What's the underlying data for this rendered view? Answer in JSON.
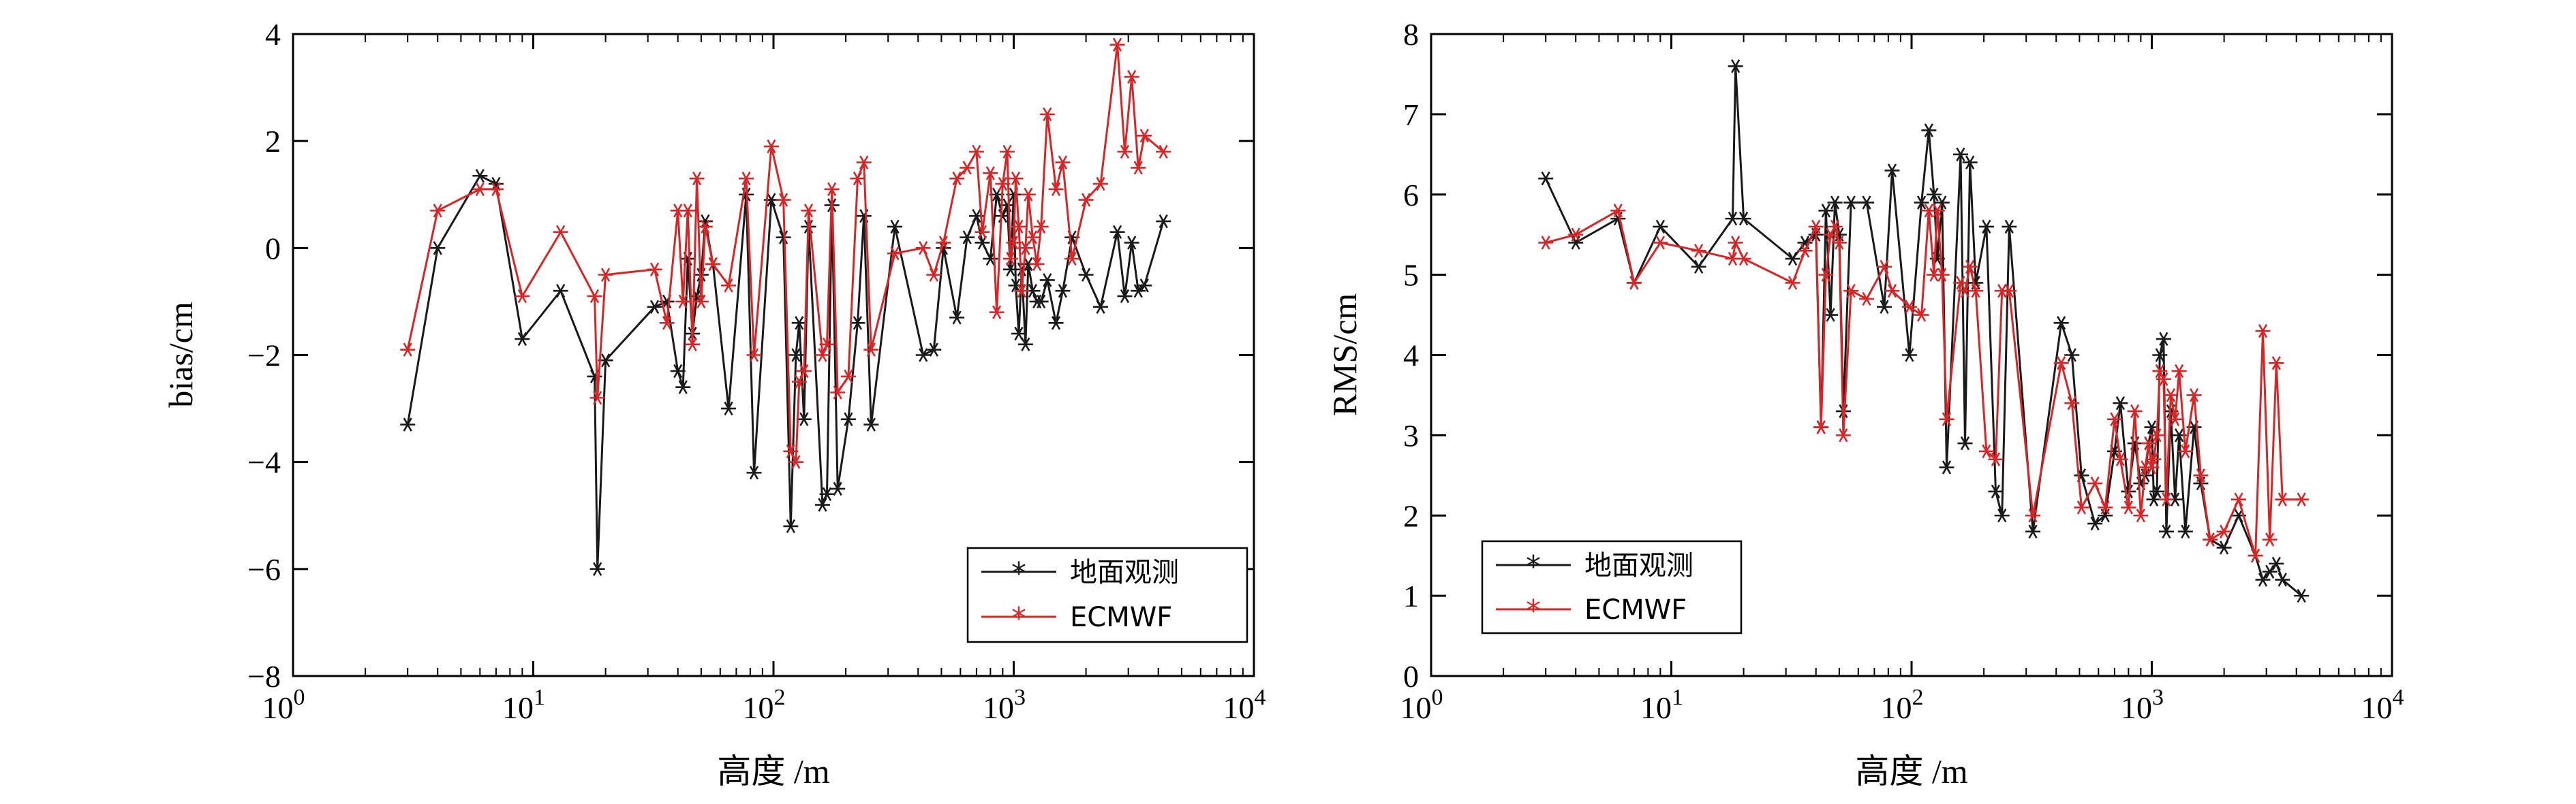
{
  "chart_data": [
    {
      "type": "line",
      "xscale": "log",
      "xlim": [
        1,
        10000
      ],
      "ylim": [
        -8,
        4
      ],
      "yticks": [
        -8,
        -6,
        -4,
        -2,
        0,
        2,
        4
      ],
      "ytick_labels": [
        "−8",
        "−6",
        "−4",
        "−2",
        "0",
        "2",
        "4"
      ],
      "xtick_labels": [
        {
          "base": "10",
          "exp": "0"
        },
        {
          "base": "10",
          "exp": "1"
        },
        {
          "base": "10",
          "exp": "2"
        },
        {
          "base": "10",
          "exp": "3"
        },
        {
          "base": "10",
          "exp": "4"
        }
      ],
      "xlabel": "高度 /m",
      "ylabel": "bias/cm",
      "legend_position": "bottom-right",
      "series": [
        {
          "name": "地面观测",
          "color": "#1a1a1a",
          "x": [
            3,
            4,
            6,
            7,
            9,
            13,
            18,
            18.5,
            20,
            32,
            36,
            40,
            42,
            44,
            46,
            48,
            50,
            52,
            56,
            65,
            77,
            83,
            98,
            110,
            118,
            124,
            128,
            134,
            140,
            160,
            167,
            175,
            185,
            205,
            224,
            238,
            255,
            320,
            420,
            465,
            510,
            580,
            640,
            700,
            740,
            800,
            850,
            900,
            940,
            970,
            1000,
            1020,
            1050,
            1080,
            1120,
            1150,
            1200,
            1250,
            1300,
            1380,
            1500,
            1600,
            1750,
            2000,
            2300,
            2700,
            2900,
            3100,
            3300,
            3500,
            4200
          ],
          "y": [
            -3.3,
            0.0,
            1.35,
            1.2,
            -1.7,
            -0.8,
            -2.4,
            -6.0,
            -2.1,
            -1.1,
            -1.0,
            -2.3,
            -2.6,
            -0.2,
            -1.6,
            -0.9,
            -0.5,
            0.5,
            -0.3,
            -3.0,
            1.0,
            -4.2,
            0.9,
            0.2,
            -5.2,
            -2.0,
            -1.4,
            -3.2,
            0.4,
            -4.8,
            -4.6,
            0.8,
            -4.5,
            -3.2,
            -1.4,
            0.6,
            -3.3,
            0.4,
            -2.0,
            -1.9,
            0.0,
            -1.3,
            0.2,
            0.6,
            0.1,
            -0.2,
            1.0,
            0.6,
            0.8,
            -0.4,
            1.0,
            -0.7,
            -1.6,
            -0.4,
            -1.8,
            -0.3,
            -0.8,
            -1.0,
            -1.0,
            -0.6,
            -1.4,
            -0.8,
            0.2,
            -0.5,
            -1.1,
            0.3,
            -0.9,
            0.1,
            -0.8,
            -0.7,
            0.5
          ]
        },
        {
          "name": "ECMWF",
          "color": "#d62728",
          "x": [
            3,
            4,
            6,
            7,
            9,
            13,
            18,
            18.5,
            20,
            32,
            36,
            40,
            42,
            44,
            46,
            48,
            50,
            52,
            56,
            65,
            77,
            83,
            98,
            110,
            118,
            124,
            128,
            134,
            140,
            160,
            167,
            175,
            185,
            205,
            224,
            238,
            255,
            320,
            420,
            465,
            510,
            580,
            640,
            700,
            740,
            800,
            850,
            900,
            940,
            970,
            1000,
            1020,
            1050,
            1080,
            1120,
            1150,
            1200,
            1250,
            1300,
            1380,
            1500,
            1600,
            1750,
            2000,
            2300,
            2700,
            2900,
            3100,
            3300,
            3500,
            4200
          ],
          "y": [
            -1.9,
            0.7,
            1.1,
            1.1,
            -0.9,
            0.3,
            -0.9,
            -2.8,
            -0.5,
            -0.4,
            -1.4,
            0.7,
            -1.0,
            0.7,
            -1.8,
            1.3,
            -1.0,
            0.4,
            -0.3,
            -0.7,
            1.3,
            -2.0,
            1.9,
            0.9,
            -3.8,
            -4.0,
            -2.5,
            -2.3,
            0.7,
            -2.0,
            -1.8,
            1.1,
            -2.7,
            -2.4,
            1.3,
            1.6,
            -1.9,
            -0.1,
            0.0,
            -0.5,
            0.1,
            1.3,
            1.5,
            1.8,
            0.3,
            1.4,
            -1.2,
            1.2,
            1.8,
            -0.2,
            0.1,
            1.3,
            0.4,
            -0.8,
            0.0,
            1.0,
            0.2,
            -0.3,
            0.4,
            2.5,
            1.1,
            1.6,
            -0.2,
            0.9,
            1.2,
            3.8,
            1.8,
            3.2,
            1.5,
            2.1,
            1.8
          ]
        }
      ]
    },
    {
      "type": "line",
      "xscale": "log",
      "xlim": [
        1,
        10000
      ],
      "ylim": [
        0,
        8
      ],
      "yticks": [
        0,
        1,
        2,
        3,
        4,
        5,
        6,
        7,
        8
      ],
      "ytick_labels": [
        "0",
        "1",
        "2",
        "3",
        "4",
        "5",
        "6",
        "7",
        "8"
      ],
      "xtick_labels": [
        {
          "base": "10",
          "exp": "0"
        },
        {
          "base": "10",
          "exp": "1"
        },
        {
          "base": "10",
          "exp": "2"
        },
        {
          "base": "10",
          "exp": "3"
        },
        {
          "base": "10",
          "exp": "4"
        }
      ],
      "xlabel": "高度 /m",
      "ylabel": "RMS/cm",
      "legend_position": "bottom-left",
      "series": [
        {
          "name": "地面观测",
          "color": "#1a1a1a",
          "x": [
            3,
            4,
            6,
            7,
            9,
            13,
            18,
            18.5,
            20,
            32,
            36,
            40,
            42,
            44,
            46,
            48,
            50,
            52,
            56,
            65,
            77,
            83,
            98,
            110,
            118,
            124,
            128,
            134,
            140,
            160,
            167,
            175,
            185,
            205,
            224,
            238,
            255,
            320,
            420,
            465,
            510,
            580,
            640,
            700,
            740,
            800,
            850,
            900,
            940,
            970,
            1000,
            1020,
            1050,
            1080,
            1120,
            1150,
            1200,
            1250,
            1300,
            1380,
            1500,
            1600,
            1750,
            2000,
            2300,
            2700,
            2900,
            3100,
            3300,
            3500,
            4200
          ],
          "y": [
            6.2,
            5.4,
            5.7,
            4.9,
            5.6,
            5.1,
            5.7,
            7.6,
            5.7,
            5.2,
            5.4,
            5.5,
            3.1,
            5.8,
            4.5,
            5.9,
            5.5,
            3.3,
            5.9,
            5.9,
            4.6,
            6.3,
            4.0,
            5.9,
            6.8,
            6.0,
            5.2,
            5.9,
            2.6,
            6.5,
            2.9,
            6.4,
            4.9,
            5.6,
            2.3,
            2.0,
            5.6,
            1.8,
            4.4,
            4.0,
            2.5,
            1.9,
            2.0,
            2.8,
            3.4,
            2.3,
            2.9,
            2.4,
            2.5,
            2.9,
            3.1,
            2.2,
            2.3,
            4.0,
            4.2,
            1.8,
            3.3,
            2.2,
            3.0,
            1.8,
            3.1,
            2.4,
            1.7,
            1.6,
            2.0,
            1.5,
            1.2,
            1.3,
            1.4,
            1.2,
            1.0
          ]
        },
        {
          "name": "ECMWF",
          "color": "#d62728",
          "x": [
            3,
            4,
            6,
            7,
            9,
            13,
            18,
            18.5,
            20,
            32,
            36,
            40,
            42,
            44,
            46,
            48,
            50,
            52,
            56,
            65,
            77,
            83,
            98,
            110,
            118,
            124,
            128,
            134,
            140,
            160,
            167,
            175,
            185,
            205,
            224,
            238,
            255,
            320,
            420,
            465,
            510,
            580,
            640,
            700,
            740,
            800,
            850,
            900,
            940,
            970,
            1000,
            1020,
            1050,
            1080,
            1120,
            1150,
            1200,
            1250,
            1300,
            1380,
            1500,
            1600,
            1750,
            2000,
            2300,
            2700,
            2900,
            3100,
            3300,
            3500,
            4200
          ],
          "y": [
            5.4,
            5.5,
            5.8,
            4.9,
            5.4,
            5.3,
            5.2,
            5.4,
            5.2,
            4.9,
            5.3,
            5.6,
            3.1,
            5.0,
            5.5,
            5.6,
            5.4,
            3.0,
            4.8,
            4.7,
            5.1,
            4.8,
            4.6,
            4.5,
            5.8,
            5.0,
            5.8,
            5.0,
            3.2,
            4.9,
            4.8,
            5.1,
            4.8,
            2.8,
            2.7,
            4.8,
            4.8,
            2.0,
            3.9,
            3.4,
            2.1,
            2.4,
            2.1,
            3.2,
            2.7,
            2.1,
            3.3,
            2.0,
            2.6,
            2.9,
            2.6,
            2.7,
            3.0,
            3.8,
            3.7,
            2.2,
            3.5,
            3.2,
            3.8,
            2.8,
            3.5,
            2.5,
            1.7,
            1.8,
            2.2,
            1.5,
            4.3,
            1.7,
            3.9,
            2.2,
            2.2
          ]
        }
      ]
    }
  ]
}
